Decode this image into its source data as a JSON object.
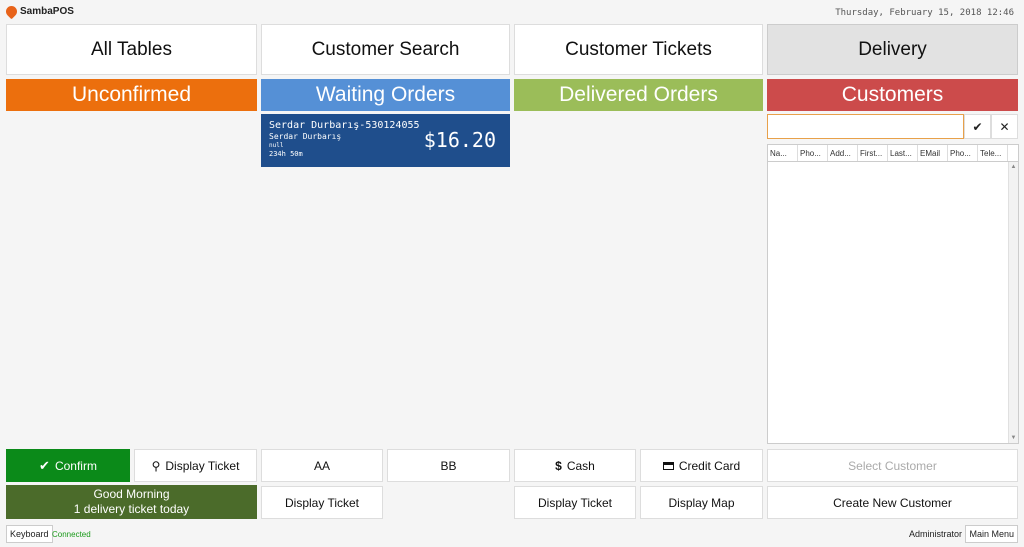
{
  "app": {
    "logo_text": "SambaPOS",
    "datetime": "Thursday, February 15, 2018 12:46"
  },
  "nav": {
    "all_tables": "All Tables",
    "customer_search": "Customer Search",
    "customer_tickets": "Customer Tickets",
    "delivery": "Delivery"
  },
  "columns": {
    "unconfirmed": {
      "label": "Unconfirmed",
      "color": "#ec6f0d"
    },
    "waiting": {
      "label": "Waiting Orders",
      "color": "#5590d6"
    },
    "delivered": {
      "label": "Delivered Orders",
      "color": "#9bbd59"
    },
    "customers": {
      "label": "Customers",
      "color": "#cc4b4b"
    }
  },
  "ticket": {
    "title": "Serdar Durbarış-530124055",
    "customer": "Serdar Durbarış",
    "note": "null",
    "elapsed": "234h 50m",
    "amount": "$16.20",
    "color": "#1f4e8c"
  },
  "customer_search": {
    "value": "",
    "placeholder": "",
    "confirm_icon": "check-icon",
    "clear_icon": "close-icon"
  },
  "customer_grid": {
    "columns": [
      "Na...",
      "Pho...",
      "Add...",
      "First...",
      "Last...",
      "EMail",
      "Pho...",
      "Tele..."
    ],
    "rows": []
  },
  "actions": {
    "confirm": "Confirm",
    "display_ticket_1": "Display Ticket",
    "aa": "AA",
    "bb": "BB",
    "cash": "Cash",
    "credit_card": "Credit Card",
    "select_customer": "Select Customer",
    "display_ticket_2": "Display Ticket",
    "display_ticket_3": "Display Ticket",
    "display_map": "Display Map",
    "create_customer": "Create New Customer"
  },
  "greeting": {
    "line1": "Good Morning",
    "line2": "1 delivery ticket today"
  },
  "status": {
    "keyboard": "Keyboard",
    "connection": "Connected",
    "user": "Administrator",
    "main_menu": "Main Menu"
  }
}
